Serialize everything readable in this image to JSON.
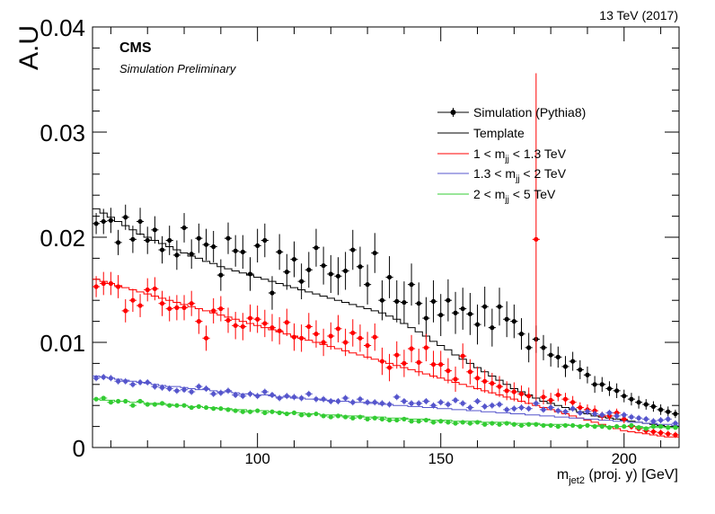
{
  "chart_data": {
    "type": "line",
    "energy_label": "13 TeV (2017)",
    "experiment": "CMS",
    "subtitle": "Simulation Preliminary",
    "ylabel": "A.U",
    "xlabel": "m_jet2 (proj. y) [GeV]",
    "xlim": [
      55,
      215
    ],
    "ylim": [
      0,
      0.04
    ],
    "x_ticks": [
      100,
      150,
      200
    ],
    "x_tick_labels": [
      "100",
      "150",
      "200"
    ],
    "y_ticks": [
      0,
      0.01,
      0.02,
      0.03,
      0.04
    ],
    "y_tick_labels": [
      "0",
      "0.01",
      "0.02",
      "0.03",
      "0.04"
    ],
    "legend": [
      "Simulation (Pythia8)",
      "Template",
      "1 < m_jj < 1.3 TeV",
      "1.3 < m_jj < 2 TeV",
      "2 < m_jj < 5 TeV"
    ],
    "bin_width": 2,
    "bin_start": 55,
    "series": [
      {
        "name": "Template",
        "kind": "template",
        "color": "#000000",
        "values": [
          0.0227,
          0.0223,
          0.0219,
          0.0215,
          0.0211,
          0.0207,
          0.0203,
          0.02,
          0.0197,
          0.0194,
          0.0191,
          0.0188,
          0.0185,
          0.0182,
          0.018,
          0.0177,
          0.0175,
          0.0172,
          0.017,
          0.0168,
          0.0166,
          0.0164,
          0.0162,
          0.016,
          0.0158,
          0.0156,
          0.0154,
          0.0152,
          0.015,
          0.0148,
          0.0146,
          0.0144,
          0.0142,
          0.014,
          0.0138,
          0.0136,
          0.0134,
          0.0132,
          0.013,
          0.0128,
          0.0125,
          0.0122,
          0.0118,
          0.0114,
          0.011,
          0.0106,
          0.0101,
          0.0097,
          0.0093,
          0.0088,
          0.0084,
          0.008,
          0.0076,
          0.0072,
          0.0068,
          0.0064,
          0.006,
          0.0056,
          0.0053,
          0.005,
          0.0047,
          0.0044,
          0.0042,
          0.004,
          0.0038,
          0.0036,
          0.0034,
          0.0032,
          0.003,
          0.0029,
          0.0028,
          0.0027,
          0.0026,
          0.0025,
          0.0024,
          0.0023,
          0.0022,
          0.0021,
          0.002,
          0.0019
        ]
      },
      {
        "name": "1 < m_jj < 1.3 TeV",
        "kind": "template",
        "color": "#ff0000",
        "values": [
          0.016,
          0.0158,
          0.0156,
          0.0154,
          0.0152,
          0.015,
          0.0148,
          0.0146,
          0.0144,
          0.0142,
          0.014,
          0.0138,
          0.0136,
          0.0134,
          0.0132,
          0.013,
          0.0128,
          0.0126,
          0.0124,
          0.0122,
          0.012,
          0.0118,
          0.0116,
          0.0114,
          0.0112,
          0.011,
          0.0108,
          0.0106,
          0.0104,
          0.0102,
          0.01,
          0.0098,
          0.0096,
          0.0094,
          0.0092,
          0.009,
          0.0088,
          0.0086,
          0.0084,
          0.0082,
          0.008,
          0.0078,
          0.0076,
          0.0074,
          0.0072,
          0.007,
          0.0068,
          0.0066,
          0.0064,
          0.0062,
          0.006,
          0.0058,
          0.0056,
          0.0054,
          0.0052,
          0.005,
          0.0048,
          0.0046,
          0.0044,
          0.0042,
          0.004,
          0.0038,
          0.0036,
          0.0034,
          0.0032,
          0.003,
          0.0028,
          0.0026,
          0.0024,
          0.0022,
          0.002,
          0.0018,
          0.0016,
          0.0015,
          0.0014,
          0.0013,
          0.0012,
          0.0011,
          0.001,
          0.001
        ]
      },
      {
        "name": "1.3 < m_jj < 2 TeV",
        "kind": "template",
        "color": "#5555cc",
        "values": [
          0.0068,
          0.0067,
          0.0066,
          0.0065,
          0.0064,
          0.0063,
          0.0062,
          0.0061,
          0.006,
          0.0059,
          0.0058,
          0.0058,
          0.0057,
          0.0056,
          0.0055,
          0.0055,
          0.0054,
          0.0053,
          0.0053,
          0.0052,
          0.0051,
          0.0051,
          0.005,
          0.005,
          0.0049,
          0.0048,
          0.0048,
          0.0047,
          0.0047,
          0.0046,
          0.0046,
          0.0045,
          0.0045,
          0.0044,
          0.0044,
          0.0043,
          0.0043,
          0.0042,
          0.0042,
          0.0041,
          0.0041,
          0.004,
          0.004,
          0.0039,
          0.0039,
          0.0038,
          0.0038,
          0.0037,
          0.0037,
          0.0036,
          0.0036,
          0.0035,
          0.0035,
          0.0034,
          0.0034,
          0.0033,
          0.0033,
          0.0032,
          0.0032,
          0.0031,
          0.0031,
          0.003,
          0.003,
          0.0029,
          0.0029,
          0.0028,
          0.0028,
          0.0027,
          0.0027,
          0.0026,
          0.0026,
          0.0025,
          0.0025,
          0.0024,
          0.0024,
          0.0023,
          0.0023,
          0.0022,
          0.0022,
          0.0021
        ]
      },
      {
        "name": "2 < m_jj < 5 TeV",
        "kind": "template",
        "color": "#33cc33",
        "values": [
          0.0046,
          0.0045,
          0.0045,
          0.0044,
          0.0044,
          0.0043,
          0.0043,
          0.0042,
          0.0042,
          0.0041,
          0.0041,
          0.004,
          0.004,
          0.0039,
          0.0039,
          0.0038,
          0.0038,
          0.0037,
          0.0037,
          0.0036,
          0.0036,
          0.0035,
          0.0035,
          0.0035,
          0.0034,
          0.0034,
          0.0033,
          0.0033,
          0.0033,
          0.0032,
          0.0032,
          0.0031,
          0.0031,
          0.0031,
          0.003,
          0.003,
          0.003,
          0.0029,
          0.0029,
          0.0029,
          0.0028,
          0.0028,
          0.0028,
          0.0027,
          0.0027,
          0.0027,
          0.0026,
          0.0026,
          0.0026,
          0.0025,
          0.0025,
          0.0025,
          0.0025,
          0.0024,
          0.0024,
          0.0024,
          0.0024,
          0.0023,
          0.0023,
          0.0023,
          0.0023,
          0.0022,
          0.0022,
          0.0022,
          0.0022,
          0.0021,
          0.0021,
          0.0021,
          0.0021,
          0.0021,
          0.002,
          0.002,
          0.002,
          0.002,
          0.002,
          0.0019,
          0.0019,
          0.0019,
          0.0019,
          0.0019
        ]
      },
      {
        "name": "Simulation (Pythia8)",
        "kind": "points",
        "color": "#000000",
        "values": [
          0.0213,
          0.0215,
          0.0216,
          0.0195,
          0.0219,
          0.0198,
          0.0215,
          0.0197,
          0.0207,
          0.0188,
          0.0197,
          0.0183,
          0.0209,
          0.0184,
          0.0199,
          0.0193,
          0.0191,
          0.0164,
          0.0199,
          0.0187,
          0.0186,
          0.0165,
          0.0192,
          0.0197,
          0.0147,
          0.0186,
          0.0167,
          0.0179,
          0.0158,
          0.0169,
          0.019,
          0.0173,
          0.0165,
          0.0163,
          0.0168,
          0.0188,
          0.0172,
          0.0155,
          0.0185,
          0.014,
          0.0162,
          0.0139,
          0.0138,
          0.0155,
          0.0137,
          0.0123,
          0.0139,
          0.0126,
          0.014,
          0.0128,
          0.0132,
          0.0127,
          0.0117,
          0.0134,
          0.0114,
          0.0134,
          0.0122,
          0.012,
          0.0108,
          0.0095,
          0.0103,
          0.0095,
          0.0088,
          0.0086,
          0.0077,
          0.0082,
          0.0074,
          0.0069,
          0.006,
          0.006,
          0.0056,
          0.0054,
          0.0049,
          0.0046,
          0.0043,
          0.0041,
          0.0039,
          0.0036,
          0.0034,
          0.0032
        ],
        "errors": [
          0.001,
          0.0012,
          0.0012,
          0.0012,
          0.0012,
          0.0013,
          0.0013,
          0.0013,
          0.0013,
          0.0013,
          0.0014,
          0.0014,
          0.0014,
          0.0014,
          0.0014,
          0.0015,
          0.0015,
          0.0015,
          0.0015,
          0.0015,
          0.0016,
          0.0016,
          0.0016,
          0.0016,
          0.0016,
          0.0017,
          0.0017,
          0.0017,
          0.0017,
          0.0017,
          0.0018,
          0.0018,
          0.0018,
          0.0018,
          0.0018,
          0.0019,
          0.0019,
          0.0019,
          0.0019,
          0.0019,
          0.002,
          0.002,
          0.002,
          0.002,
          0.002,
          0.002,
          0.002,
          0.002,
          0.002,
          0.002,
          0.002,
          0.002,
          0.0019,
          0.0019,
          0.0018,
          0.0018,
          0.0017,
          0.0016,
          0.0015,
          0.0014,
          0.0013,
          0.0012,
          0.0011,
          0.001,
          0.001,
          0.0009,
          0.0009,
          0.0008,
          0.0008,
          0.0007,
          0.0007,
          0.0007,
          0.0006,
          0.0006,
          0.0006,
          0.0005,
          0.0005,
          0.0005,
          0.0005,
          0.0004
        ]
      },
      {
        "name": "1 < m_jj < 1.3 TeV",
        "kind": "points",
        "color": "#ff0000",
        "values": [
          0.0153,
          0.0156,
          0.0156,
          0.0153,
          0.013,
          0.014,
          0.0135,
          0.015,
          0.0151,
          0.0137,
          0.0132,
          0.0133,
          0.0133,
          0.0137,
          0.012,
          0.0104,
          0.013,
          0.0132,
          0.0121,
          0.0116,
          0.0115,
          0.0123,
          0.0122,
          0.0118,
          0.0114,
          0.0111,
          0.0119,
          0.0105,
          0.0104,
          0.0115,
          0.0108,
          0.01,
          0.0106,
          0.0113,
          0.01,
          0.0109,
          0.0104,
          0.0097,
          0.0105,
          0.0082,
          0.0076,
          0.0088,
          0.008,
          0.0094,
          0.0081,
          0.0095,
          0.0079,
          0.0079,
          0.0073,
          0.0065,
          0.0087,
          0.0072,
          0.0066,
          0.0063,
          0.0061,
          0.0058,
          0.0054,
          0.0053,
          0.0051,
          0.0049,
          0.0198,
          0.0048,
          0.0045,
          0.005,
          0.0046,
          0.0043,
          0.0038,
          0.0036,
          0.0035,
          0.003,
          0.003,
          0.0033,
          0.0027,
          0.002,
          0.0018,
          0.0016,
          0.0015,
          0.0014,
          0.0013,
          0.0012
        ],
        "errors": [
          0.001,
          0.0011,
          0.0011,
          0.0011,
          0.0011,
          0.0011,
          0.0011,
          0.0011,
          0.0011,
          0.0012,
          0.0012,
          0.0012,
          0.0012,
          0.0012,
          0.0012,
          0.0012,
          0.0012,
          0.0012,
          0.0012,
          0.0013,
          0.0013,
          0.0013,
          0.0013,
          0.0013,
          0.0013,
          0.0013,
          0.0013,
          0.0013,
          0.0013,
          0.0013,
          0.0013,
          0.0013,
          0.0013,
          0.0013,
          0.0013,
          0.0013,
          0.0013,
          0.0013,
          0.0013,
          0.0013,
          0.0013,
          0.0013,
          0.0013,
          0.0013,
          0.0013,
          0.0013,
          0.0013,
          0.0013,
          0.0012,
          0.0012,
          0.0012,
          0.0012,
          0.0011,
          0.0011,
          0.001,
          0.001,
          0.0009,
          0.0009,
          0.0008,
          0.0008,
          0.0158,
          0.0007,
          0.0007,
          0.0006,
          0.0006,
          0.0006,
          0.0005,
          0.0005,
          0.0005,
          0.0004,
          0.0004,
          0.0004,
          0.0004,
          0.0003,
          0.0003,
          0.0003,
          0.0003,
          0.0003,
          0.0003,
          0.0003
        ]
      },
      {
        "name": "1.3 < m_jj < 2 TeV",
        "kind": "points",
        "color": "#5555cc",
        "values": [
          0.0066,
          0.0067,
          0.0066,
          0.0063,
          0.0063,
          0.006,
          0.0062,
          0.0062,
          0.0058,
          0.0057,
          0.0056,
          0.0054,
          0.0055,
          0.0053,
          0.0058,
          0.0056,
          0.0051,
          0.0052,
          0.0054,
          0.005,
          0.0049,
          0.0051,
          0.0049,
          0.0053,
          0.005,
          0.0047,
          0.0049,
          0.0048,
          0.0047,
          0.0051,
          0.0046,
          0.0046,
          0.0044,
          0.0044,
          0.0047,
          0.0043,
          0.0046,
          0.0043,
          0.0043,
          0.0042,
          0.0041,
          0.0048,
          0.0044,
          0.0042,
          0.0042,
          0.0044,
          0.004,
          0.0043,
          0.0041,
          0.0045,
          0.0042,
          0.0038,
          0.0044,
          0.0039,
          0.004,
          0.0041,
          0.0036,
          0.0037,
          0.0038,
          0.0037,
          0.0042,
          0.0036,
          0.0038,
          0.0035,
          0.0034,
          0.0037,
          0.0033,
          0.0034,
          0.0032,
          0.0031,
          0.0033,
          0.003,
          0.0031,
          0.0029,
          0.0028,
          0.0027,
          0.0025,
          0.0026,
          0.0027,
          0.0023
        ],
        "errors": [
          0.0003,
          0.0003,
          0.0003,
          0.0003,
          0.0003,
          0.0003,
          0.0003,
          0.0003,
          0.0003,
          0.0003,
          0.0003,
          0.0003,
          0.0003,
          0.0003,
          0.0003,
          0.0003,
          0.0003,
          0.0003,
          0.0003,
          0.0003,
          0.0003,
          0.0003,
          0.0003,
          0.0003,
          0.0003,
          0.0003,
          0.0003,
          0.0003,
          0.0003,
          0.0003,
          0.0003,
          0.0003,
          0.0003,
          0.0003,
          0.0003,
          0.0003,
          0.0003,
          0.0003,
          0.0003,
          0.0003,
          0.0003,
          0.0003,
          0.0003,
          0.0003,
          0.0003,
          0.0003,
          0.0003,
          0.0003,
          0.0003,
          0.0003,
          0.0003,
          0.0003,
          0.0003,
          0.0003,
          0.0003,
          0.0003,
          0.0003,
          0.0003,
          0.0003,
          0.0003,
          0.0003,
          0.0003,
          0.0003,
          0.0003,
          0.0003,
          0.0003,
          0.0003,
          0.0003,
          0.0003,
          0.0003,
          0.0003,
          0.0003,
          0.0003,
          0.0003,
          0.0003,
          0.0003,
          0.0003,
          0.0003,
          0.0003,
          0.0003
        ]
      },
      {
        "name": "2 < m_jj < 5 TeV",
        "kind": "points",
        "color": "#33cc33",
        "values": [
          0.0046,
          0.0047,
          0.0043,
          0.0044,
          0.0044,
          0.004,
          0.0044,
          0.0041,
          0.0041,
          0.0042,
          0.004,
          0.004,
          0.004,
          0.0038,
          0.0039,
          0.0038,
          0.0037,
          0.0037,
          0.0036,
          0.0035,
          0.0034,
          0.0034,
          0.0035,
          0.0033,
          0.0034,
          0.0033,
          0.0032,
          0.0033,
          0.0031,
          0.0031,
          0.0032,
          0.003,
          0.0029,
          0.003,
          0.0029,
          0.0028,
          0.0029,
          0.0027,
          0.0028,
          0.0027,
          0.0026,
          0.0026,
          0.0027,
          0.0025,
          0.0025,
          0.0026,
          0.0024,
          0.0025,
          0.0024,
          0.0023,
          0.0024,
          0.0023,
          0.0024,
          0.0022,
          0.0023,
          0.0022,
          0.0023,
          0.0022,
          0.0021,
          0.0022,
          0.0022,
          0.0021,
          0.0021,
          0.002,
          0.0021,
          0.0021,
          0.002,
          0.0021,
          0.002,
          0.002,
          0.0019,
          0.002,
          0.002,
          0.0021,
          0.0019,
          0.0018,
          0.002,
          0.002,
          0.0019,
          0.0019
        ],
        "errors": [
          0.0002,
          0.0002,
          0.0002,
          0.0002,
          0.0002,
          0.0002,
          0.0002,
          0.0002,
          0.0002,
          0.0002,
          0.0002,
          0.0002,
          0.0002,
          0.0002,
          0.0002,
          0.0002,
          0.0002,
          0.0002,
          0.0002,
          0.0002,
          0.0002,
          0.0002,
          0.0002,
          0.0002,
          0.0002,
          0.0002,
          0.0002,
          0.0002,
          0.0002,
          0.0002,
          0.0002,
          0.0002,
          0.0002,
          0.0002,
          0.0002,
          0.0002,
          0.0002,
          0.0002,
          0.0002,
          0.0002,
          0.0002,
          0.0002,
          0.0002,
          0.0002,
          0.0002,
          0.0002,
          0.0002,
          0.0002,
          0.0002,
          0.0002,
          0.0002,
          0.0002,
          0.0002,
          0.0002,
          0.0002,
          0.0002,
          0.0002,
          0.0002,
          0.0002,
          0.0002,
          0.0002,
          0.0002,
          0.0002,
          0.0002,
          0.0002,
          0.0002,
          0.0002,
          0.0002,
          0.0002,
          0.0002,
          0.0002,
          0.0002,
          0.0002,
          0.0002,
          0.0002,
          0.0002,
          0.0002,
          0.0002,
          0.0002,
          0.0002
        ]
      }
    ]
  }
}
